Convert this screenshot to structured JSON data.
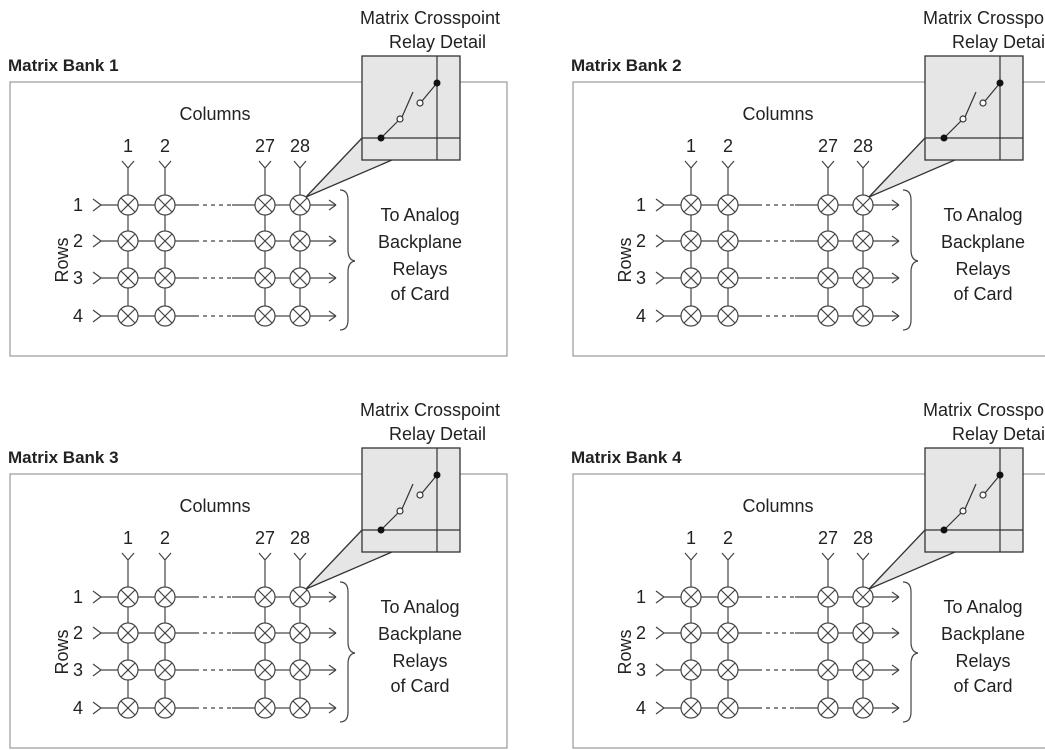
{
  "colors": {
    "line": "#444444",
    "frame": "#9a9a9a",
    "detail_fill": "#e6e6e6"
  },
  "banks": [
    {
      "title": "Matrix Bank 1",
      "detail_label": [
        "Matrix Crosspoint",
        "Relay Detail"
      ],
      "columns_label": "Columns",
      "column_numbers": [
        "1",
        "2",
        "27",
        "28"
      ],
      "rows_label": "Rows",
      "row_numbers": [
        "1",
        "2",
        "3",
        "4"
      ],
      "output_label": [
        "To Analog",
        "Backplane",
        "Relays",
        "of Card"
      ]
    },
    {
      "title": "Matrix Bank 2",
      "detail_label": [
        "Matrix Crosspoint",
        "Relay Detail"
      ],
      "columns_label": "Columns",
      "column_numbers": [
        "1",
        "2",
        "27",
        "28"
      ],
      "rows_label": "Rows",
      "row_numbers": [
        "1",
        "2",
        "3",
        "4"
      ],
      "output_label": [
        "To Analog",
        "Backplane",
        "Relays",
        "of Card"
      ]
    },
    {
      "title": "Matrix Bank 3",
      "detail_label": [
        "Matrix Crosspoint",
        "Relay Detail"
      ],
      "columns_label": "Columns",
      "column_numbers": [
        "1",
        "2",
        "27",
        "28"
      ],
      "rows_label": "Rows",
      "row_numbers": [
        "1",
        "2",
        "3",
        "4"
      ],
      "output_label": [
        "To Analog",
        "Backplane",
        "Relays",
        "of Card"
      ]
    },
    {
      "title": "Matrix Bank 4",
      "detail_label": [
        "Matrix Crosspoint",
        "Relay Detail"
      ],
      "columns_label": "Columns",
      "column_numbers": [
        "1",
        "2",
        "27",
        "28"
      ],
      "rows_label": "Rows",
      "row_numbers": [
        "1",
        "2",
        "3",
        "4"
      ],
      "output_label": [
        "To Analog",
        "Backplane",
        "Relays",
        "of Card"
      ]
    }
  ]
}
